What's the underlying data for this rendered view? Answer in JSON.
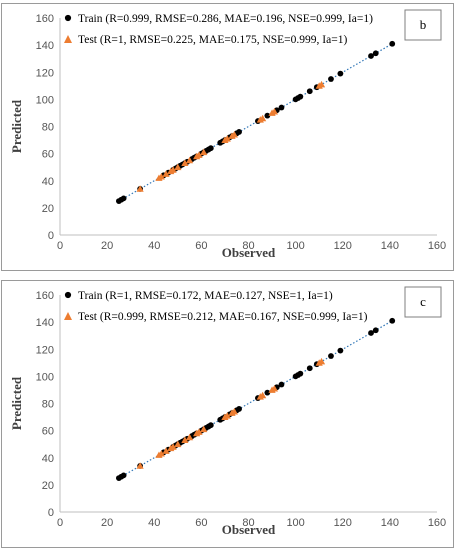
{
  "chart_data": [
    {
      "type": "scatter",
      "panel_label": "b",
      "xlabel": "Observed",
      "ylabel": "Predicted",
      "xlim": [
        0,
        160
      ],
      "ylim": [
        0,
        160
      ],
      "xticks": [
        "0",
        "20",
        "40",
        "60",
        "80",
        "100",
        "120",
        "140",
        "160"
      ],
      "yticks": [
        "0",
        "20",
        "40",
        "60",
        "80",
        "100",
        "120",
        "140",
        "160"
      ],
      "grid": false,
      "legend_position": "top-left",
      "trendline": "dotted 1:1",
      "series": [
        {
          "name": "Train (R=0.999, RMSE=0.286, MAE=0.196, NSE=0.999, Ia=1)",
          "marker": "circle",
          "color": "#000000",
          "points": [
            [
              25,
              25
            ],
            [
              26,
              26
            ],
            [
              27,
              27
            ],
            [
              34,
              34
            ],
            [
              44,
              44
            ],
            [
              46,
              46
            ],
            [
              48,
              48
            ],
            [
              49,
              49
            ],
            [
              50,
              50
            ],
            [
              51,
              51
            ],
            [
              52,
              52
            ],
            [
              53,
              53
            ],
            [
              54,
              54
            ],
            [
              56,
              56
            ],
            [
              57,
              57
            ],
            [
              58,
              58
            ],
            [
              60,
              60
            ],
            [
              61,
              61
            ],
            [
              62,
              62
            ],
            [
              63,
              63
            ],
            [
              64,
              64
            ],
            [
              68,
              68
            ],
            [
              69,
              69
            ],
            [
              70,
              70
            ],
            [
              72,
              72
            ],
            [
              73,
              73
            ],
            [
              75,
              75
            ],
            [
              76,
              76
            ],
            [
              84,
              84
            ],
            [
              88,
              88
            ],
            [
              92,
              92
            ],
            [
              94,
              94
            ],
            [
              100,
              100
            ],
            [
              101,
              101
            ],
            [
              102,
              102
            ],
            [
              106,
              106
            ],
            [
              109,
              109
            ],
            [
              115,
              115
            ],
            [
              119,
              119
            ],
            [
              132,
              132
            ],
            [
              134,
              134
            ],
            [
              141,
              141
            ]
          ]
        },
        {
          "name": "Test (R=1, RMSE=0.225, MAE=0.175, NSE=0.999, Ia=1)",
          "marker": "triangle",
          "color": "#ed7d31",
          "points": [
            [
              34,
              34
            ],
            [
              42,
              42
            ],
            [
              43,
              43
            ],
            [
              45,
              45
            ],
            [
              47,
              47
            ],
            [
              48,
              48
            ],
            [
              50,
              50
            ],
            [
              53,
              53
            ],
            [
              55,
              55
            ],
            [
              58,
              58
            ],
            [
              59,
              59
            ],
            [
              61,
              61
            ],
            [
              70,
              70
            ],
            [
              71,
              71
            ],
            [
              73,
              73
            ],
            [
              74,
              74
            ],
            [
              85,
              85
            ],
            [
              86,
              86
            ],
            [
              90,
              90
            ],
            [
              91,
              91
            ],
            [
              110,
              110
            ],
            [
              111,
              111
            ]
          ]
        }
      ]
    },
    {
      "type": "scatter",
      "panel_label": "c",
      "xlabel": "Observed",
      "ylabel": "Predicted",
      "xlim": [
        0,
        160
      ],
      "ylim": [
        0,
        160
      ],
      "xticks": [
        "0",
        "20",
        "40",
        "60",
        "80",
        "100",
        "120",
        "140",
        "160"
      ],
      "yticks": [
        "0",
        "20",
        "40",
        "60",
        "80",
        "100",
        "120",
        "140",
        "160"
      ],
      "grid": false,
      "legend_position": "top-left",
      "trendline": "dotted 1:1",
      "series": [
        {
          "name": "Train (R=1, RMSE=0.172, MAE=0.127, NSE=1, Ia=1)",
          "marker": "circle",
          "color": "#000000",
          "points": [
            [
              25,
              25
            ],
            [
              26,
              26
            ],
            [
              27,
              27
            ],
            [
              34,
              34
            ],
            [
              44,
              44
            ],
            [
              46,
              46
            ],
            [
              48,
              48
            ],
            [
              49,
              49
            ],
            [
              50,
              50
            ],
            [
              51,
              51
            ],
            [
              52,
              52
            ],
            [
              53,
              53
            ],
            [
              54,
              54
            ],
            [
              56,
              56
            ],
            [
              57,
              57
            ],
            [
              58,
              58
            ],
            [
              60,
              60
            ],
            [
              61,
              61
            ],
            [
              62,
              62
            ],
            [
              63,
              63
            ],
            [
              64,
              64
            ],
            [
              68,
              68
            ],
            [
              69,
              69
            ],
            [
              70,
              70
            ],
            [
              72,
              72
            ],
            [
              73,
              73
            ],
            [
              75,
              75
            ],
            [
              76,
              76
            ],
            [
              84,
              84
            ],
            [
              88,
              88
            ],
            [
              92,
              92
            ],
            [
              94,
              94
            ],
            [
              100,
              100
            ],
            [
              101,
              101
            ],
            [
              102,
              102
            ],
            [
              106,
              106
            ],
            [
              109,
              109
            ],
            [
              115,
              115
            ],
            [
              119,
              119
            ],
            [
              132,
              132
            ],
            [
              134,
              134
            ],
            [
              141,
              141
            ]
          ]
        },
        {
          "name": "Test (R=0.999, RMSE=0.212, MAE=0.167, NSE=0.999, Ia=1)",
          "marker": "triangle",
          "color": "#ed7d31",
          "points": [
            [
              34,
              34
            ],
            [
              42,
              42
            ],
            [
              43,
              43
            ],
            [
              45,
              45
            ],
            [
              47,
              47
            ],
            [
              48,
              48
            ],
            [
              50,
              50
            ],
            [
              53,
              53
            ],
            [
              55,
              55
            ],
            [
              58,
              58
            ],
            [
              59,
              59
            ],
            [
              61,
              61
            ],
            [
              70,
              70
            ],
            [
              71,
              71
            ],
            [
              73,
              73
            ],
            [
              74,
              74
            ],
            [
              85,
              85
            ],
            [
              86,
              86
            ],
            [
              90,
              90
            ],
            [
              91,
              91
            ],
            [
              110,
              110
            ],
            [
              111,
              111
            ]
          ]
        }
      ]
    }
  ]
}
